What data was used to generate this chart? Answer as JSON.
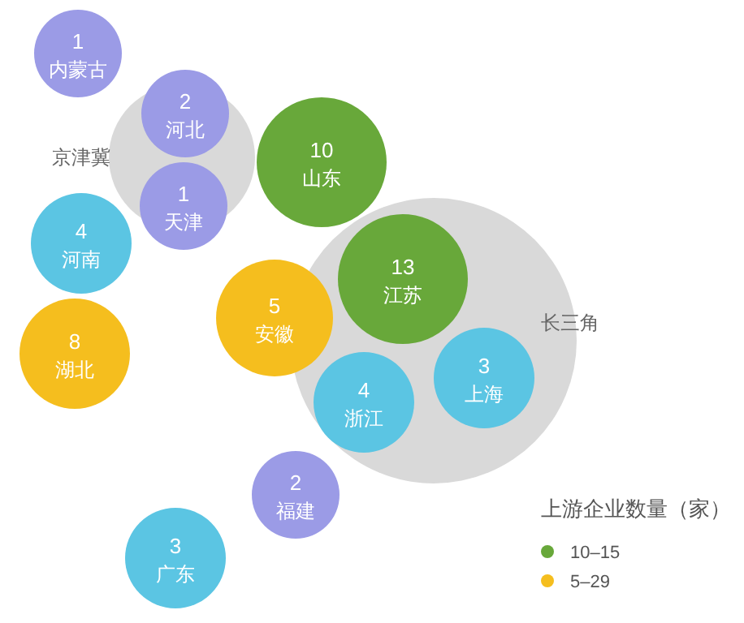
{
  "chart_data": {
    "type": "other",
    "legend_title": "上游企业数量（家）",
    "legend": "bottom right",
    "data_labels": true,
    "categories": [
      "内蒙古",
      "河北",
      "天津",
      "山东",
      "江苏",
      "河南",
      "湖北",
      "安徽",
      "浙江",
      "上海",
      "福建",
      "广东"
    ],
    "series": [
      {
        "color": "#9b9be6",
        "values": [
          1,
          2,
          1,
          null,
          null,
          null,
          null,
          null,
          null,
          null,
          2,
          null
        ]
      },
      {
        "name": "10–15",
        "color": "#68a83a",
        "values": [
          null,
          null,
          null,
          10,
          13,
          null,
          null,
          null,
          null,
          null,
          null,
          null
        ]
      },
      {
        "name": "5–29",
        "color": "#f5be1e",
        "values": [
          null,
          null,
          null,
          null,
          null,
          null,
          8,
          5,
          null,
          null,
          null,
          null
        ]
      },
      {
        "color": "#5bc5e3",
        "values": [
          null,
          null,
          null,
          null,
          null,
          4,
          null,
          null,
          4,
          3,
          null,
          3
        ]
      }
    ],
    "annotations": [
      "京津冀",
      "长三角"
    ]
  }
}
